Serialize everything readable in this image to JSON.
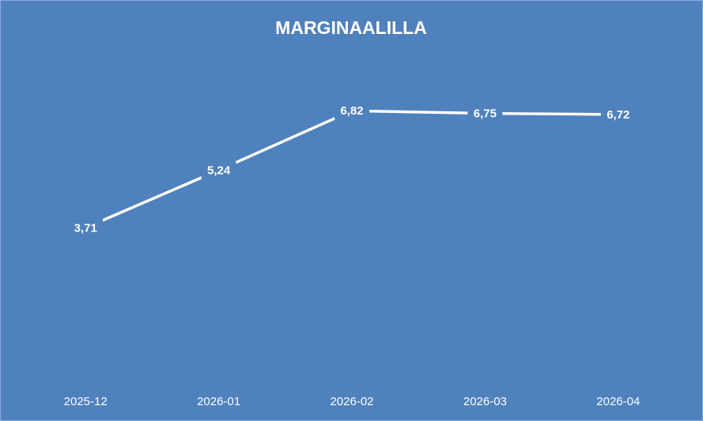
{
  "chart_data": {
    "type": "line",
    "title": "MARGINAALILLA",
    "categories": [
      "2025-12",
      "2026-01",
      "2026-02",
      "2026-03",
      "2026-04"
    ],
    "values": [
      3.71,
      5.24,
      6.82,
      6.75,
      6.72
    ],
    "value_labels": [
      "3,71",
      "5,24",
      "6,82",
      "6,75",
      "6,72"
    ],
    "color": "#ffffff",
    "background": "#4f81bd",
    "drop_lines": true,
    "ylim": [
      0,
      8
    ]
  }
}
